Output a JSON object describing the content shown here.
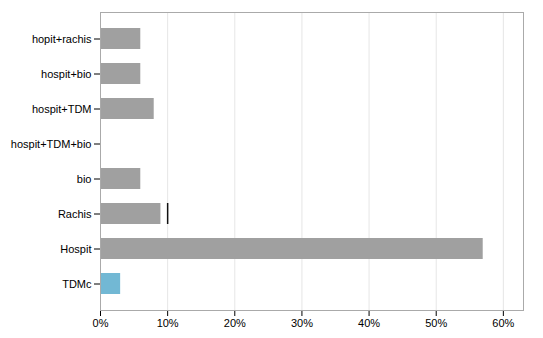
{
  "chart_data": {
    "type": "bar",
    "orientation": "horizontal",
    "categories": [
      "hopit+rachis",
      "hospit+bio",
      "hospit+TDM",
      "hospit+TDM+bio",
      "bio",
      "Rachis",
      "Hospit",
      "TDMc"
    ],
    "values": [
      6,
      6,
      8,
      0,
      6,
      9,
      57,
      3
    ],
    "colors": [
      "#a0a0a0",
      "#a0a0a0",
      "#a0a0a0",
      "#a0a0a0",
      "#a0a0a0",
      "#a0a0a0",
      "#a0a0a0",
      "#72b8d4"
    ],
    "reference_marks": [
      {
        "category": "Rachis",
        "value": 10,
        "color": "#111111"
      }
    ],
    "xlim": [
      0,
      63
    ],
    "xticks": [
      {
        "value": 0,
        "label": "0%"
      },
      {
        "value": 10,
        "label": "10%"
      },
      {
        "value": 20,
        "label": "20%"
      },
      {
        "value": 30,
        "label": "30%"
      },
      {
        "value": 40,
        "label": "40%"
      },
      {
        "value": 50,
        "label": "50%"
      },
      {
        "value": 60,
        "label": "60%"
      }
    ],
    "grid": true
  }
}
